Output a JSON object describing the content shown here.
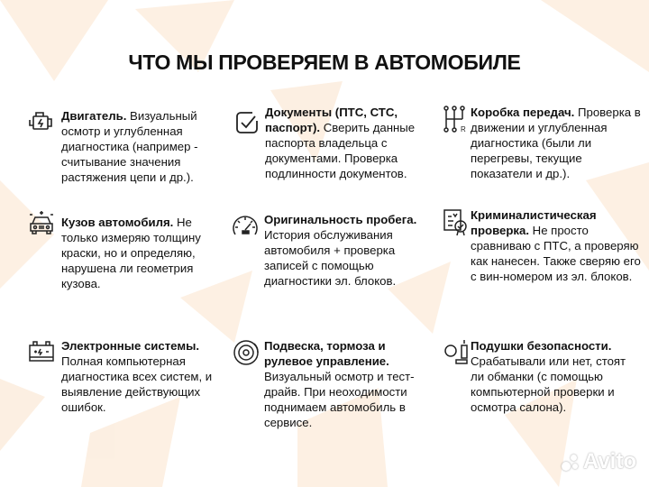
{
  "title": "ЧТО МЫ ПРОВЕРЯЕМ В АВТОМОБИЛЕ",
  "accent_color": "#f5a050",
  "items": [
    {
      "icon": "engine-icon",
      "head": "Двигатель.",
      "body": " Визуальный осмотр и углубленная диагностика (например - считывание значения растяжения цепи и др.)."
    },
    {
      "icon": "checkbox-icon",
      "head": "Документы (ПТС, СТС, паспорт).",
      "body": " Сверить данные паспорта владельца с документами. Проверка подлинности документов."
    },
    {
      "icon": "gearshift-icon",
      "head": "Коробка передач.",
      "body": " Проверка в движении и углубленная диагностика (были ли перегревы, текущие показатели и др.)."
    },
    {
      "icon": "car-body-icon",
      "head": "Кузов автомобиля.",
      "body": " Не только измеряю толщину краски, но и определяю, нарушена ли геометрия кузова."
    },
    {
      "icon": "odometer-icon",
      "head": "Оригинальность пробега.",
      "body": " История обслуживания автомобиля + проверка записей с помощью диагностики эл. блоков."
    },
    {
      "icon": "certificate-icon",
      "head": "Криминалистическая проверка.",
      "body": " Не просто сравниваю с ПТС, а проверяю как нанесен. Также сверяю его с вин-номером из эл. блоков."
    },
    {
      "icon": "battery-icon",
      "head": "Электронные системы.",
      "body": " Полная компьютерная диагностика всех систем, и выявление действующих ошибок."
    },
    {
      "icon": "brake-disc-icon",
      "head": "Подвеска, тормоза и рулевое управление.",
      "body": " Визуальный осмотр и тест-драйв. При неоходимости поднимаем автомобиль в сервисе."
    },
    {
      "icon": "airbag-icon",
      "head": "Подушки безопасности.",
      "body": " Срабатывали или нет, стоят ли обманки (с помощью компьютерной проверки и осмотра салона)."
    }
  ],
  "watermark": "Avito"
}
